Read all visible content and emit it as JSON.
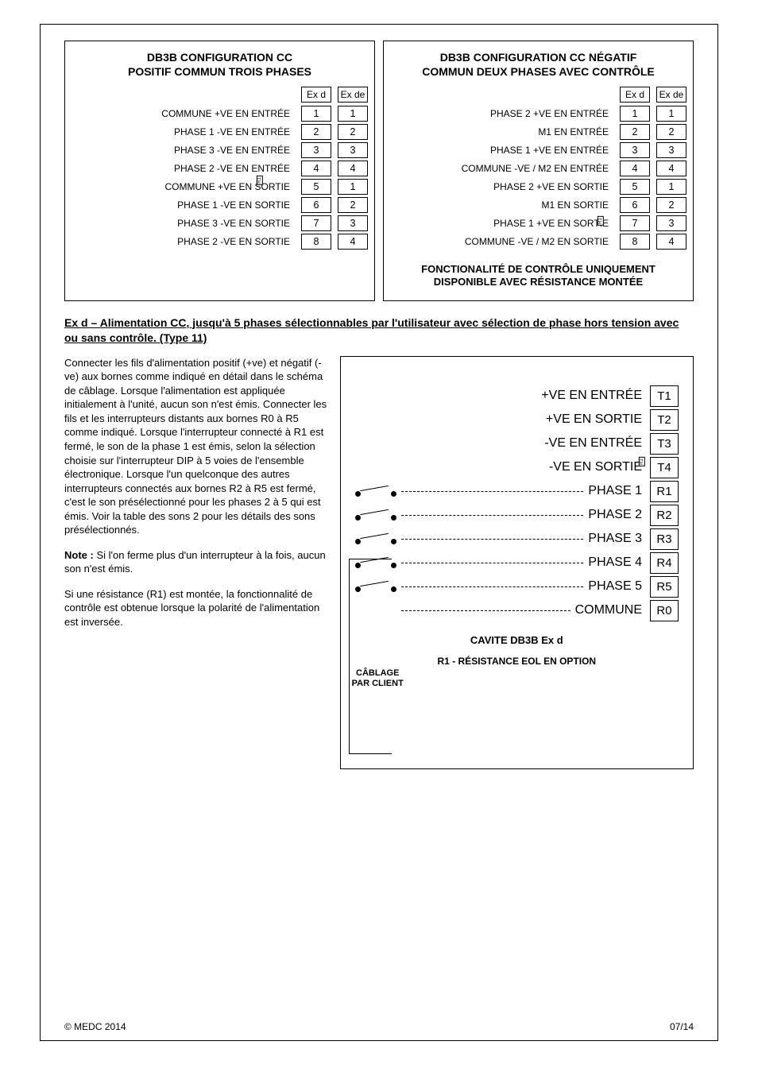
{
  "left_diagram": {
    "title_line1": "DB3B CONFIGURATION CC",
    "title_line2": "POSITIF COMMUN TROIS PHASES",
    "col1_header": "Ex d",
    "col2_header": "Ex de",
    "r1_label": "R1",
    "rows": [
      {
        "label": "COMMUNE +VE EN ENTRÉE",
        "c1": "1",
        "c2": "1"
      },
      {
        "label": "PHASE 1 -VE EN ENTRÉE",
        "c1": "2",
        "c2": "2"
      },
      {
        "label": "PHASE 3 -VE EN ENTRÉE",
        "c1": "3",
        "c2": "3"
      },
      {
        "label": "PHASE 2 -VE EN  ENTRÉE",
        "c1": "4",
        "c2": "4"
      },
      {
        "label": "COMMUNE +VE EN SORTIE",
        "c1": "5",
        "c2": "1"
      },
      {
        "label": "PHASE 1 -VE EN SORTIE",
        "c1": "6",
        "c2": "2"
      },
      {
        "label": "PHASE 3 -VE EN SORTIE",
        "c1": "7",
        "c2": "3"
      },
      {
        "label": "PHASE 2 -VE EN SORTIE",
        "c1": "8",
        "c2": "4"
      }
    ]
  },
  "right_diagram": {
    "title_line1": "DB3B CONFIGURATION CC NÉGATIF",
    "title_line2": "COMMUN DEUX PHASES AVEC CONTRÔLE",
    "col1_header": "Ex d",
    "col2_header": "Ex de",
    "r1_label": "R1",
    "monitor_line1": "FONCTIONALITÉ DE CONTRÔLE UNIQUEMENT",
    "monitor_line2": "DISPONIBLE AVEC RÉSISTANCE MONTÉE",
    "rows": [
      {
        "label": "PHASE 2 +VE EN ENTRÉE",
        "c1": "1",
        "c2": "1"
      },
      {
        "label": "M1 EN ENTRÉE",
        "c1": "2",
        "c2": "2"
      },
      {
        "label": "PHASE 1 +VE EN ENTRÉE",
        "c1": "3",
        "c2": "3"
      },
      {
        "label": "COMMUNE -VE / M2 EN ENTRÉE",
        "c1": "4",
        "c2": "4"
      },
      {
        "label": "PHASE 2 +VE EN SORTIE",
        "c1": "5",
        "c2": "1"
      },
      {
        "label": "M1 EN SORTIE",
        "c1": "6",
        "c2": "2"
      },
      {
        "label": "PHASE 1 +VE EN SORTIE",
        "c1": "7",
        "c2": "3"
      },
      {
        "label": "COMMUNE -VE / M2 EN SORTIE",
        "c1": "8",
        "c2": "4"
      }
    ]
  },
  "section_heading": "Ex d – Alimentation CC, jusqu'à 5 phases sélectionnables par l'utilisateur avec sélection de phase hors tension avec ou sans contrôle. (Type 11)",
  "body_p1": "Connecter les fils d'alimentation positif (+ve) et négatif (-ve) aux bornes comme indiqué en détail dans le schéma de câblage. Lorsque l'alimentation est appliquée initialement à l'unité, aucun son n'est émis. Connecter les fils et les interrupteurs distants aux bornes R0 à R5 comme indiqué. Lorsque l'interrupteur connecté à R1 est fermé, le son de la phase 1 est émis, selon la sélection choisie sur l'interrupteur DIP à 5 voies de l'ensemble électronique. Lorsque l'un quelconque des autres interrupteurs connectés aux bornes R2 à R5 est fermé, c'est le son présélectionné pour les phases 2 à 5 qui est émis. Voir la table des sons 2 pour les détails des sons présélectionnés.",
  "note_label": "Note :",
  "body_p2": " Si l'on ferme plus d'un interrupteur à la fois, aucun son n'est émis.",
  "body_p3": "Si une résistance (R1) est montée, la fonctionnalité de contrôle est obtenue lorsque la polarité de l'alimentation est inversée.",
  "type11_diagram": {
    "r1_label": "R1",
    "rows": [
      {
        "label": "+VE EN ENTRÉE",
        "pin": "T1",
        "type": "power"
      },
      {
        "label": "+VE EN SORTIE",
        "pin": "T2",
        "type": "power"
      },
      {
        "label": "-VE EN ENTRÉE",
        "pin": "T3",
        "type": "power"
      },
      {
        "label": "-VE EN SORTIE",
        "pin": "T4",
        "type": "power"
      },
      {
        "label": "PHASE 1",
        "pin": "R1",
        "type": "switch"
      },
      {
        "label": "PHASE 2",
        "pin": "R2",
        "type": "switch"
      },
      {
        "label": "PHASE 3",
        "pin": "R3",
        "type": "switch"
      },
      {
        "label": "PHASE 4",
        "pin": "R4",
        "type": "switch"
      },
      {
        "label": "PHASE 5",
        "pin": "R5",
        "type": "switch"
      },
      {
        "label": "COMMUNE",
        "pin": "R0",
        "type": "common"
      }
    ],
    "cablage_line1": "CÂBLAGE",
    "cablage_line2": "PAR CLIENT",
    "cavity_caption": "CAVITE DB3B Ex d",
    "r1_caption": "R1 - RÉSISTANCE EOL EN OPTION"
  },
  "footer": {
    "left": "© MEDC 2014",
    "right": "07/14"
  },
  "colors": {
    "text": "#000000",
    "background": "#ffffff",
    "border": "#000000"
  }
}
